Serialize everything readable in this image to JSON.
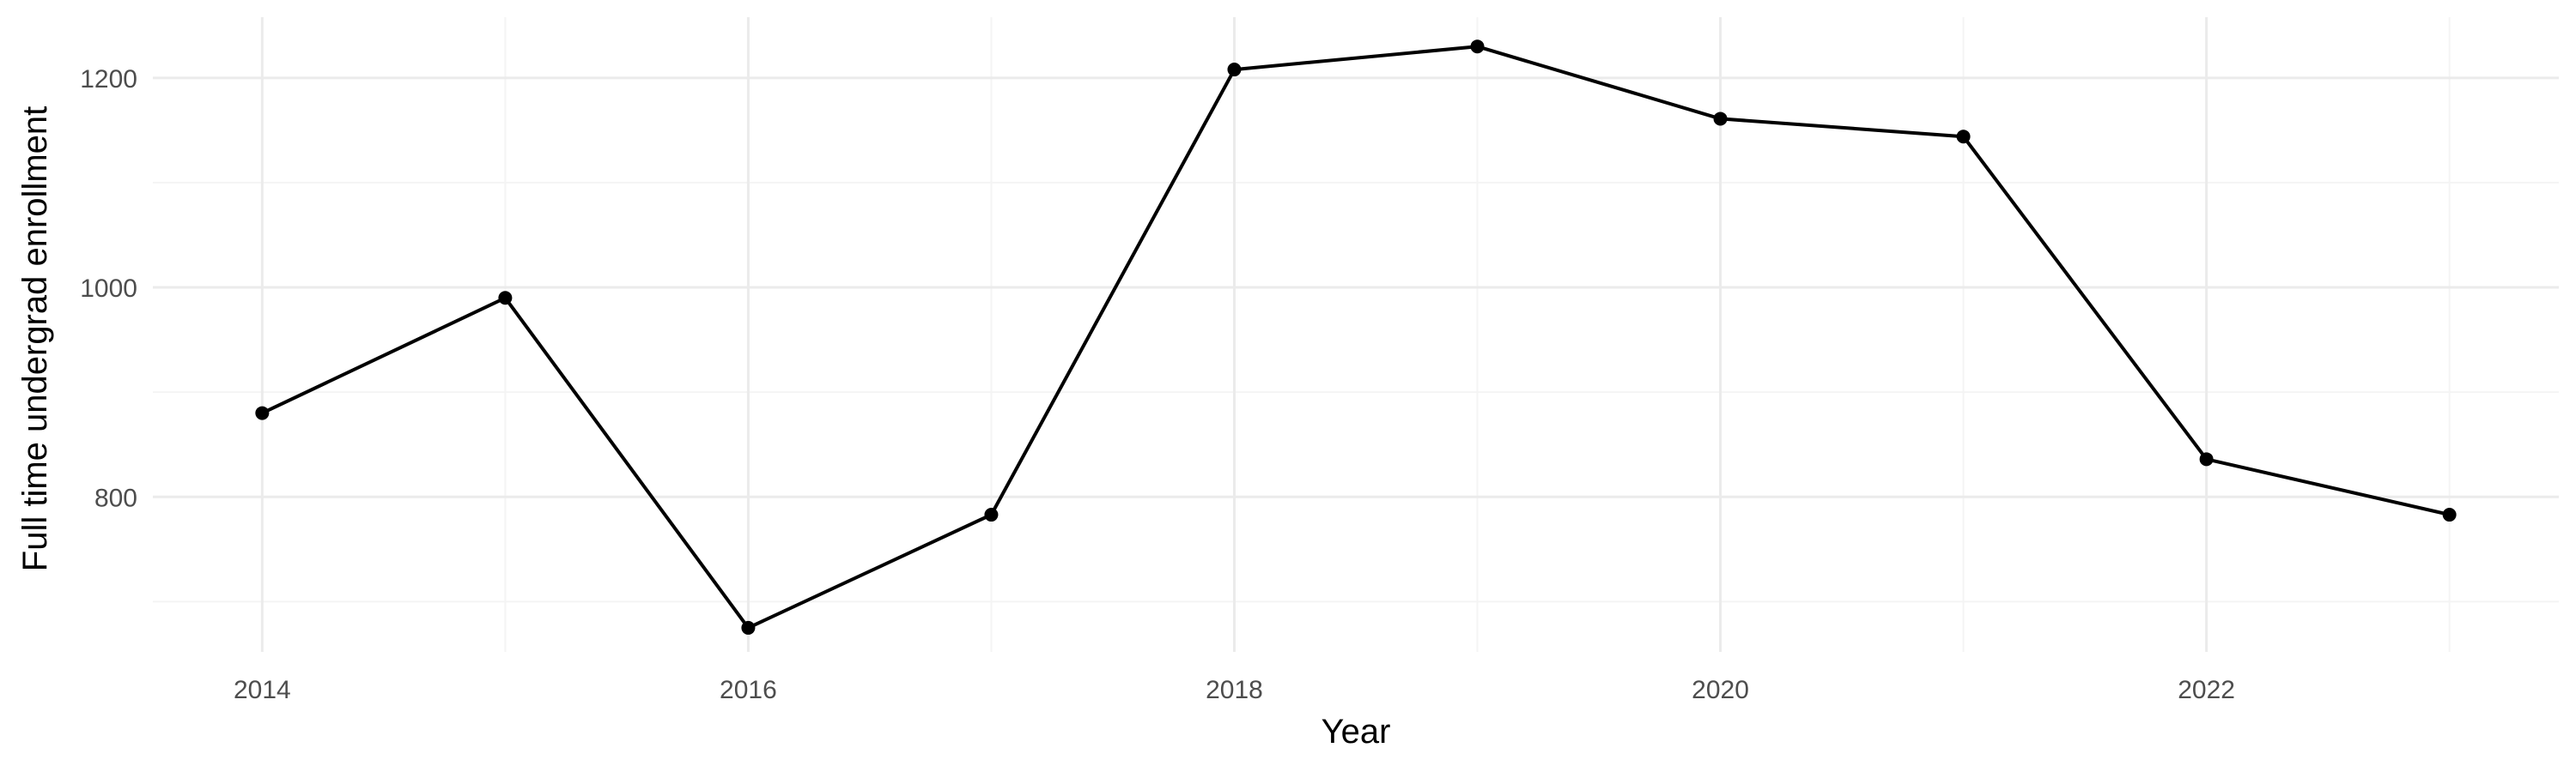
{
  "chart_data": {
    "type": "line",
    "title": "",
    "xlabel": "Year",
    "ylabel": "Full time undergrad enrollment",
    "x": [
      2014,
      2015,
      2016,
      2017,
      2018,
      2019,
      2020,
      2021,
      2022,
      2023
    ],
    "series": [
      {
        "values": [
          880,
          990,
          675,
          783,
          1208,
          1230,
          1161,
          1144,
          836,
          783
        ],
        "color": "#000000"
      }
    ],
    "xlim": [
      2013.55,
      2023.45
    ],
    "ylim": [
      652,
      1258
    ],
    "x_ticks": [
      2014,
      2016,
      2018,
      2020,
      2022
    ],
    "x_tick_labels": [
      "2014",
      "2016",
      "2018",
      "2020",
      "2022"
    ],
    "y_ticks": [
      800,
      1000,
      1200
    ],
    "y_tick_labels": [
      "800",
      "1000",
      "1200"
    ],
    "x_minor_ticks": [
      2015,
      2017,
      2019,
      2021,
      2023
    ],
    "y_minor_ticks": [
      700,
      900,
      1100
    ],
    "grid": true,
    "legend": "none",
    "colors": {
      "grid_major": "#ebebeb",
      "grid_minor": "#f4f4f4",
      "line": "#000000",
      "point": "#000000"
    }
  }
}
